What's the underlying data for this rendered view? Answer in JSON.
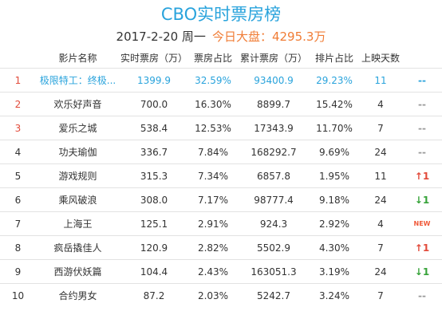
{
  "header": {
    "title": "CBO实时票房榜",
    "date": "2017-2-20 周一",
    "total_label": "今日大盘：",
    "total_value": "4295.3万"
  },
  "columns": {
    "rank": "",
    "name": "影片名称",
    "realtime": "实时票房（万）",
    "box_share": "票房占比",
    "cumulative": "累计票房（万）",
    "screen_share": "排片占比",
    "days": "上映天数",
    "change": ""
  },
  "rows": [
    {
      "rank": "1",
      "name": "极限特工：终极...",
      "realtime": "1399.9",
      "box_share": "32.59%",
      "cumulative": "93400.9",
      "screen_share": "29.23%",
      "days": "11",
      "change": "--"
    },
    {
      "rank": "2",
      "name": "欢乐好声音",
      "realtime": "700.0",
      "box_share": "16.30%",
      "cumulative": "8899.7",
      "screen_share": "15.42%",
      "days": "4",
      "change": "--"
    },
    {
      "rank": "3",
      "name": "爱乐之城",
      "realtime": "538.4",
      "box_share": "12.53%",
      "cumulative": "17343.9",
      "screen_share": "11.70%",
      "days": "7",
      "change": "--"
    },
    {
      "rank": "4",
      "name": "功夫瑜伽",
      "realtime": "336.7",
      "box_share": "7.84%",
      "cumulative": "168292.7",
      "screen_share": "9.69%",
      "days": "24",
      "change": "--"
    },
    {
      "rank": "5",
      "name": "游戏规则",
      "realtime": "315.3",
      "box_share": "7.34%",
      "cumulative": "6857.8",
      "screen_share": "1.95%",
      "days": "11",
      "change": "↑1"
    },
    {
      "rank": "6",
      "name": "乘风破浪",
      "realtime": "308.0",
      "box_share": "7.17%",
      "cumulative": "98777.4",
      "screen_share": "9.18%",
      "days": "24",
      "change": "↓1"
    },
    {
      "rank": "7",
      "name": "上海王",
      "realtime": "125.1",
      "box_share": "2.91%",
      "cumulative": "924.3",
      "screen_share": "2.92%",
      "days": "4",
      "change": "NEW"
    },
    {
      "rank": "8",
      "name": "疯岳撬佳人",
      "realtime": "120.9",
      "box_share": "2.82%",
      "cumulative": "5502.9",
      "screen_share": "4.30%",
      "days": "7",
      "change": "↑1"
    },
    {
      "rank": "9",
      "name": "西游伏妖篇",
      "realtime": "104.4",
      "box_share": "2.43%",
      "cumulative": "163051.3",
      "screen_share": "3.19%",
      "days": "24",
      "change": "↓1"
    },
    {
      "rank": "10",
      "name": "合约男女",
      "realtime": "87.2",
      "box_share": "2.03%",
      "cumulative": "5242.7",
      "screen_share": "3.24%",
      "days": "7",
      "change": "--"
    }
  ],
  "colors": {
    "title": "#29a3dc",
    "accent_orange": "#f07c35",
    "rank_red": "#e24b3b",
    "up_red": "#e24b3b",
    "down_green": "#37a33a"
  }
}
